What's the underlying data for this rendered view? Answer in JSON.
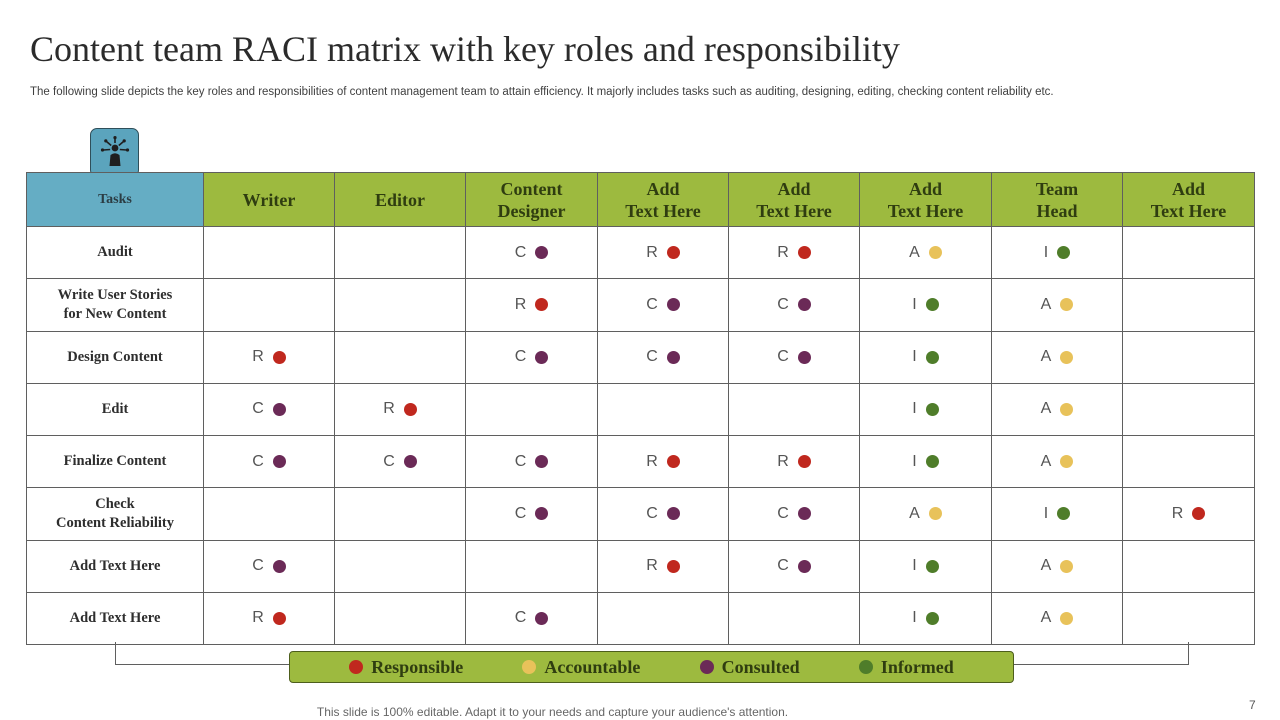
{
  "title": "Content team RACI matrix with key roles and responsibility",
  "subtitle": "The following slide depicts the key roles and responsibilities of content management team to attain efficiency.  It majorly includes tasks such as auditing, designing, editing, checking content reliability etc.",
  "icon": "people-network-icon",
  "colors": {
    "R": "#c0281e",
    "A": "#e8c25a",
    "C": "#6b2a57",
    "I": "#4f7d2a"
  },
  "headers": [
    "Tasks",
    "Writer",
    "Editor",
    "Content\nDesigner",
    "Add\nText Here",
    "Add\nText Here",
    "Add\nText Here",
    "Team\nHead",
    "Add\nText Here"
  ],
  "rows": [
    {
      "task": "Audit",
      "cells": [
        "",
        "",
        "C",
        "R",
        "R",
        "A",
        "I",
        ""
      ]
    },
    {
      "task": "Write User Stories\nfor New Content",
      "cells": [
        "",
        "",
        "R",
        "C",
        "C",
        "I",
        "A",
        ""
      ]
    },
    {
      "task": "Design Content",
      "cells": [
        "R",
        "",
        "C",
        "C",
        "C",
        "I",
        "A",
        ""
      ]
    },
    {
      "task": "Edit",
      "cells": [
        "C",
        "R",
        "",
        "",
        "",
        "I",
        "A",
        ""
      ]
    },
    {
      "task": "Finalize Content",
      "cells": [
        "C",
        "C",
        "C",
        "R",
        "R",
        "I",
        "A",
        ""
      ]
    },
    {
      "task": "Check\nContent Reliability",
      "cells": [
        "",
        "",
        "C",
        "C",
        "C",
        "A",
        "I",
        "R"
      ]
    },
    {
      "task": "Add Text Here",
      "cells": [
        "C",
        "",
        "",
        "R",
        "C",
        "I",
        "A",
        ""
      ]
    },
    {
      "task": "Add Text Here",
      "cells": [
        "R",
        "",
        "C",
        "",
        "",
        "I",
        "A",
        ""
      ]
    }
  ],
  "legend": [
    {
      "key": "R",
      "label": "Responsible"
    },
    {
      "key": "A",
      "label": "Accountable"
    },
    {
      "key": "C",
      "label": "Consulted"
    },
    {
      "key": "I",
      "label": "Informed"
    }
  ],
  "footer": "This slide is 100% editable. Adapt it to your needs and capture your audience's attention.",
  "page_number": "7"
}
